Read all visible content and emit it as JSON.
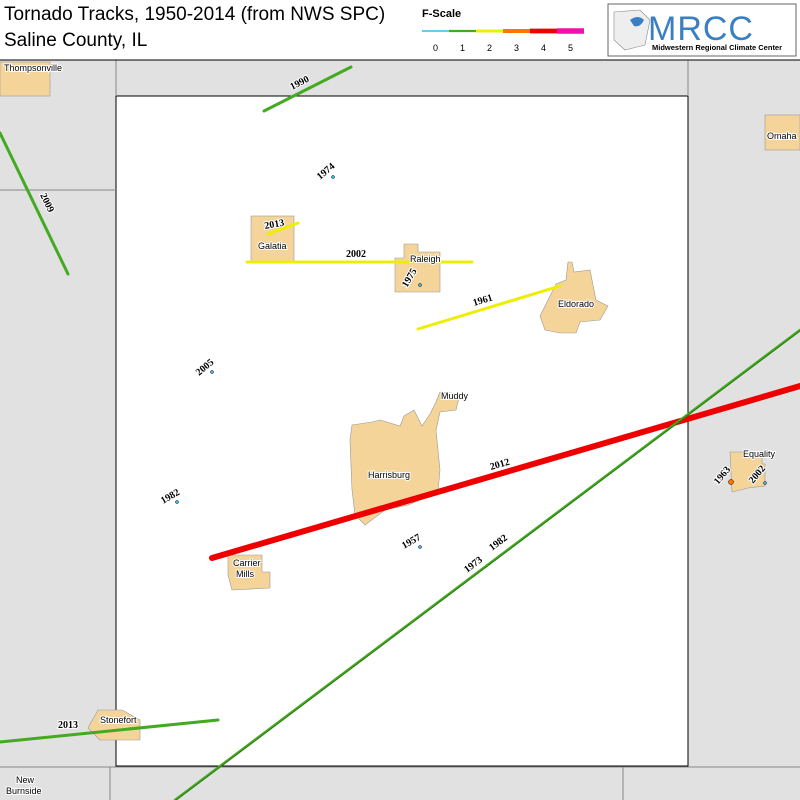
{
  "title": {
    "line1": "Tornado Tracks, 1950-2014 (from NWS SPC)",
    "line2": "Saline County, IL"
  },
  "legend": {
    "title": "F-Scale",
    "classes": [
      {
        "label": "0",
        "color": "#33bbee"
      },
      {
        "label": "1",
        "color": "#44aa22"
      },
      {
        "label": "2",
        "color": "#eeee00"
      },
      {
        "label": "3",
        "color": "#ff7700"
      },
      {
        "label": "4",
        "color": "#ee0000"
      },
      {
        "label": "5",
        "color": "#ee11aa"
      }
    ]
  },
  "logo": {
    "name": "MRCC",
    "subtitle": "Midwestern Regional Climate Center"
  },
  "towns": {
    "thompsonville": "Thompsonville",
    "galatia": "Galatia",
    "raleigh": "Raleigh",
    "eldorado": "Eldorado",
    "muddy": "Muddy",
    "harrisburg": "Harrisburg",
    "carrier_mills": "Carrier Mills",
    "stonefort": "Stonefort",
    "omaha": "Omaha",
    "equality": "Equality",
    "new_burnside": "New Burnside"
  },
  "tracks": [
    {
      "year": "1990",
      "f": 1
    },
    {
      "year": "2009",
      "f": 1
    },
    {
      "year": "2013",
      "f": 2
    },
    {
      "year": "2002",
      "f": 2
    },
    {
      "year": "1961",
      "f": 2
    },
    {
      "year": "2012",
      "f": 4
    },
    {
      "year": "1973",
      "f": 1
    },
    {
      "year": "1982",
      "f": 1
    },
    {
      "year": "2013",
      "f": 1
    }
  ],
  "points": [
    {
      "year": "1974",
      "f": 0
    },
    {
      "year": "1975",
      "f": 0
    },
    {
      "year": "2005",
      "f": 0
    },
    {
      "year": "1982",
      "f": 0
    },
    {
      "year": "1957",
      "f": 0
    },
    {
      "year": "1963",
      "f": 3
    },
    {
      "year": "2002",
      "f": 0
    }
  ]
}
